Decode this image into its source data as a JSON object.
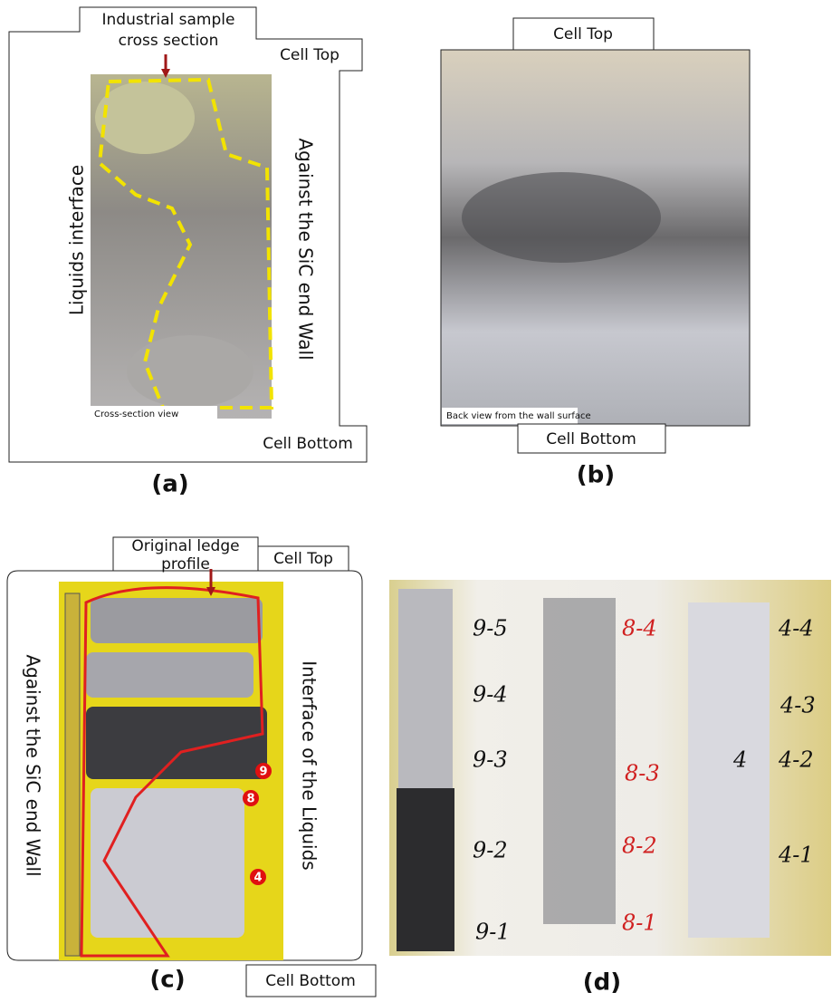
{
  "panels": [
    {
      "label": "(a)",
      "caption": [
        "Industrial sample",
        "cross section"
      ],
      "top": "Cell Top",
      "left": "Liquids interface",
      "right": "Against the SiC end Wall",
      "view": "Cross-section view",
      "bottom": "Cell Bottom"
    },
    {
      "label": "(b)",
      "top": "Cell Top",
      "view": "Back view from the wall surface",
      "bottom": "Cell Bottom"
    },
    {
      "label": "(c)",
      "caption": [
        "Original ledge",
        "profile"
      ],
      "top": "Cell Top",
      "left": "Against the SiC end Wall",
      "right": "Interface of the Liquids",
      "markers": [
        "9",
        "8",
        "4"
      ],
      "bottom": "Cell Bottom"
    },
    {
      "label": "(d)",
      "tags": [
        "9-5",
        "9-4",
        "9-3",
        "9-2",
        "9-1",
        "8-4",
        "8-3",
        "8-2",
        "8-1",
        "4-4",
        "4-3",
        "4-2",
        "4",
        "4-1"
      ]
    }
  ]
}
